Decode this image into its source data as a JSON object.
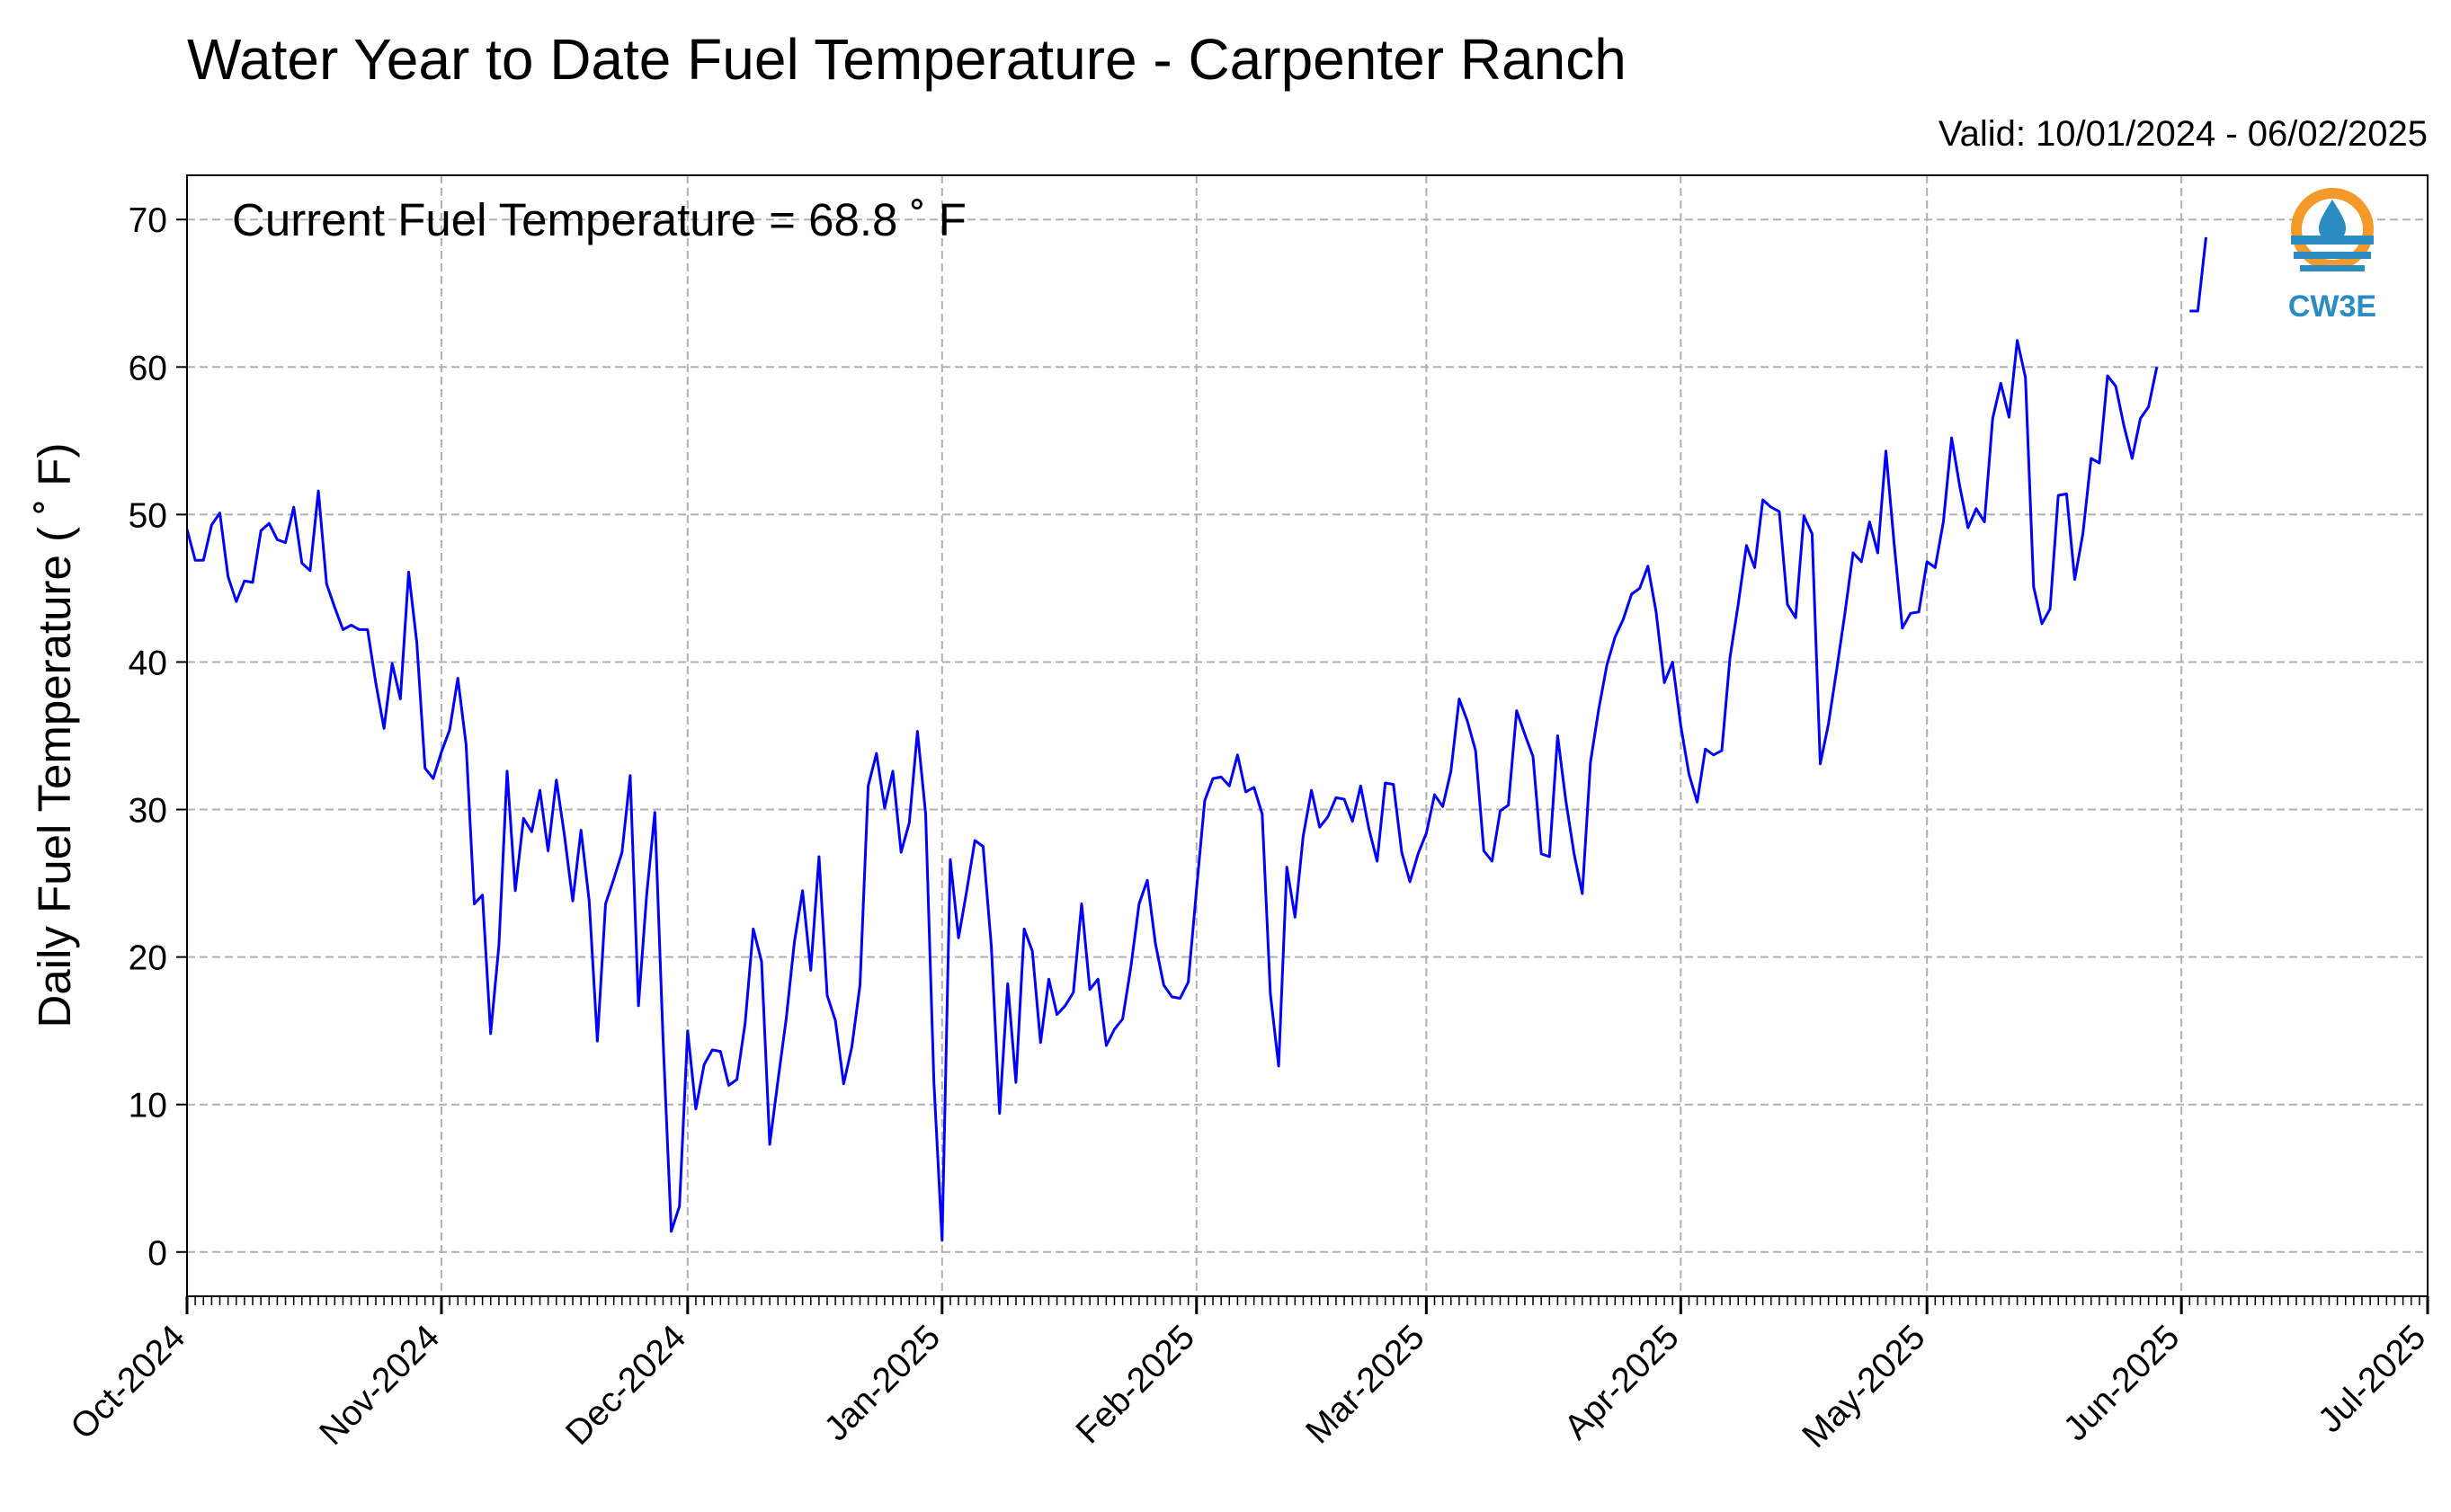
{
  "header": {
    "title": "Water Year to Date Fuel Temperature - Carpenter Ranch",
    "valid": "Valid: 10/01/2024 - 06/02/2025"
  },
  "annotation": {
    "current": "Current Fuel Temperature = 68.8 ˚ F"
  },
  "logo": {
    "text": "CW3E",
    "colors": {
      "orange": "#f39a2b",
      "blue": "#2a8cc1"
    }
  },
  "chart_data": {
    "type": "line",
    "title": "Water Year to Date Fuel Temperature - Carpenter Ranch",
    "ylabel": "Daily Fuel Temperature ( ˚ F)",
    "xlabel": "",
    "ylim": [
      -3,
      73
    ],
    "xlim": [
      "2024-10-01",
      "2025-07-01"
    ],
    "yticks": [
      0,
      10,
      20,
      30,
      40,
      50,
      60,
      70
    ],
    "xticks": [
      {
        "date": "2024-10-01",
        "label": "Oct-2024"
      },
      {
        "date": "2024-11-01",
        "label": "Nov-2024"
      },
      {
        "date": "2024-12-01",
        "label": "Dec-2024"
      },
      {
        "date": "2025-01-01",
        "label": "Jan-2025"
      },
      {
        "date": "2025-02-01",
        "label": "Feb-2025"
      },
      {
        "date": "2025-03-01",
        "label": "Mar-2025"
      },
      {
        "date": "2025-04-01",
        "label": "Apr-2025"
      },
      {
        "date": "2025-05-01",
        "label": "May-2025"
      },
      {
        "date": "2025-06-01",
        "label": "Jun-2025"
      },
      {
        "date": "2025-07-01",
        "label": "Jul-2025"
      }
    ],
    "grid": true,
    "line_color": "#0000ff",
    "series": [
      {
        "start_date": "2024-10-01",
        "values": [
          49.0,
          46.9,
          46.9,
          49.3,
          50.1,
          45.8,
          44.1,
          45.5,
          45.4,
          48.9,
          49.4,
          48.3,
          48.1,
          50.5,
          46.7,
          46.2,
          51.6,
          45.3,
          43.7,
          42.2,
          42.5,
          42.2,
          42.2,
          38.6,
          35.5,
          39.9,
          37.5,
          46.1,
          41.3,
          32.8,
          32.1,
          33.9,
          35.4,
          38.9,
          34.4,
          23.6,
          24.2,
          14.8,
          20.8,
          32.6,
          24.5,
          29.4,
          28.5,
          31.3,
          27.2,
          32.0,
          28.2,
          23.8,
          28.6,
          23.8,
          14.3,
          23.6,
          25.3,
          27.1,
          32.3,
          16.7,
          24.2,
          29.8,
          14.5,
          1.4,
          3.1,
          15.0,
          9.7,
          12.7,
          13.7,
          13.6,
          11.3,
          11.7,
          15.5,
          21.9,
          19.7,
          7.3,
          11.6,
          15.8,
          21.0,
          24.5,
          19.1,
          26.8,
          17.4,
          15.7,
          11.4,
          13.9,
          18.1,
          31.6,
          33.8,
          30.1,
          32.6,
          27.1,
          29.1,
          35.3,
          29.7,
          11.5,
          0.8,
          26.6,
          21.3,
          24.5,
          27.9,
          27.5,
          20.7,
          9.4,
          18.2,
          11.5,
          21.9,
          20.4,
          14.2,
          18.5,
          16.1,
          16.7,
          17.6,
          23.6,
          17.8,
          18.5,
          14.0,
          15.1,
          15.8,
          19.3,
          23.6,
          25.2,
          20.9,
          18.1,
          17.3,
          17.2,
          18.3,
          24.6,
          30.6,
          32.1,
          32.2,
          31.6,
          33.7,
          31.2,
          31.5,
          29.7,
          17.5,
          12.6,
          26.1,
          22.7,
          28.2,
          31.3,
          28.8,
          29.5,
          30.8,
          30.7,
          29.2,
          31.6,
          28.7,
          26.5,
          31.8,
          31.7,
          27.1,
          25.1,
          27.0,
          28.4,
          31.0,
          30.2,
          32.6,
          37.5,
          36.0,
          34.0,
          27.2,
          26.5,
          29.9,
          30.3,
          36.7,
          35.1,
          33.6,
          27.0,
          26.8,
          35.0,
          30.6,
          27.0,
          24.3,
          33.2,
          36.8,
          39.8,
          41.7,
          42.9,
          44.6,
          45.0,
          46.5,
          43.4,
          38.6,
          40.0,
          35.7,
          32.4,
          30.5,
          34.1,
          33.7,
          34.0,
          40.3,
          43.9,
          47.9,
          46.4,
          51.0,
          50.5,
          50.2,
          43.9,
          43.0,
          49.9,
          48.7,
          33.1,
          35.8,
          39.5,
          43.3,
          47.4,
          46.8,
          49.5,
          47.4,
          54.3,
          48.0,
          42.3,
          43.3,
          43.4,
          46.8,
          46.4,
          49.5,
          55.2,
          51.9,
          49.1,
          50.4,
          49.5,
          56.5,
          58.9,
          56.6,
          61.8,
          59.3,
          45.1,
          42.6,
          43.6,
          51.3,
          51.4,
          45.6,
          48.7,
          53.8,
          53.5,
          59.4,
          58.7,
          56.0,
          53.8,
          56.5,
          57.3,
          60.0,
          null,
          null,
          null,
          63.8,
          63.8,
          68.8
        ]
      }
    ]
  }
}
